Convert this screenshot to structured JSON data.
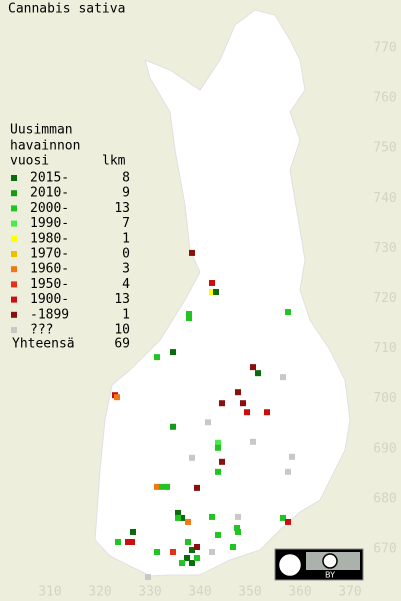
{
  "title": "Cannabis sativa",
  "legend": {
    "heading": [
      "Uusimman",
      "havainnon",
      "vuosi"
    ],
    "count_heading": "lkm",
    "rows": [
      {
        "label": "2015-",
        "count": 8,
        "color": "#0b6a0b"
      },
      {
        "label": "2010-",
        "count": 9,
        "color": "#169a16"
      },
      {
        "label": "2000-",
        "count": 13,
        "color": "#22c422"
      },
      {
        "label": "1990-",
        "count": 7,
        "color": "#48ec48"
      },
      {
        "label": "1980-",
        "count": 1,
        "color": "#ffff00"
      },
      {
        "label": "1970-",
        "count": 0,
        "color": "#f0c000"
      },
      {
        "label": "1960-",
        "count": 3,
        "color": "#f07818"
      },
      {
        "label": "1950-",
        "count": 4,
        "color": "#e83018"
      },
      {
        "label": "1900-",
        "count": 13,
        "color": "#c81010"
      },
      {
        "label": "-1899",
        "count": 1,
        "color": "#8a1010"
      },
      {
        "label": "???",
        "count": 10,
        "color": "#c8c8c8"
      }
    ],
    "total_label": "Yhteensä",
    "total": 69
  },
  "map": {
    "xticks": [
      310,
      320,
      330,
      340,
      350,
      360,
      370
    ],
    "yticks": [
      670,
      680,
      690,
      700,
      710,
      720,
      730,
      740,
      750,
      760,
      770
    ],
    "points": [
      {
        "x": 338.4,
        "y": 729.1,
        "period": 9
      },
      {
        "x": 342.4,
        "y": 723.1,
        "period": 8
      },
      {
        "x": 342.4,
        "y": 721.3,
        "period": 4
      },
      {
        "x": 343.2,
        "y": 721.3,
        "period": 0
      },
      {
        "x": 337.8,
        "y": 716.9,
        "period": 2
      },
      {
        "x": 337.8,
        "y": 716.1,
        "period": 2
      },
      {
        "x": 357.6,
        "y": 717.3,
        "period": 2
      },
      {
        "x": 331.4,
        "y": 708.3,
        "period": 2
      },
      {
        "x": 334.6,
        "y": 709.3,
        "period": 0
      },
      {
        "x": 350.6,
        "y": 706.3,
        "period": 9
      },
      {
        "x": 351.6,
        "y": 705.1,
        "period": 0
      },
      {
        "x": 356.6,
        "y": 704.3,
        "period": 10
      },
      {
        "x": 323,
        "y": 700.7,
        "period": 8
      },
      {
        "x": 323.4,
        "y": 700.3,
        "period": 6
      },
      {
        "x": 347.6,
        "y": 701.3,
        "period": 9
      },
      {
        "x": 344.4,
        "y": 699.1,
        "period": 9
      },
      {
        "x": 348.6,
        "y": 699.1,
        "period": 9
      },
      {
        "x": 349.4,
        "y": 697.3,
        "period": 8
      },
      {
        "x": 353.4,
        "y": 697.3,
        "period": 8
      },
      {
        "x": 334.6,
        "y": 694.4,
        "period": 1
      },
      {
        "x": 341.6,
        "y": 695.3,
        "period": 10
      },
      {
        "x": 343.6,
        "y": 691.2,
        "period": 3
      },
      {
        "x": 343.6,
        "y": 690.2,
        "period": 2
      },
      {
        "x": 350.6,
        "y": 691.4,
        "period": 10
      },
      {
        "x": 358.4,
        "y": 688.4,
        "period": 10
      },
      {
        "x": 357.6,
        "y": 685.4,
        "period": 10
      },
      {
        "x": 338.4,
        "y": 688.2,
        "period": 10
      },
      {
        "x": 344.4,
        "y": 687.4,
        "period": 9
      },
      {
        "x": 343.6,
        "y": 685.4,
        "period": 2
      },
      {
        "x": 331.4,
        "y": 682.4,
        "period": 6
      },
      {
        "x": 332.4,
        "y": 682.4,
        "period": 2
      },
      {
        "x": 333.4,
        "y": 682.4,
        "period": 2
      },
      {
        "x": 339.4,
        "y": 682.2,
        "period": 9
      },
      {
        "x": 335.6,
        "y": 677.2,
        "period": 0
      },
      {
        "x": 336.4,
        "y": 676.2,
        "period": 0
      },
      {
        "x": 335.6,
        "y": 676.2,
        "period": 2
      },
      {
        "x": 342.4,
        "y": 676.4,
        "period": 2
      },
      {
        "x": 347.6,
        "y": 676.4,
        "period": 10
      },
      {
        "x": 356.6,
        "y": 676.2,
        "period": 2
      },
      {
        "x": 357.6,
        "y": 675.4,
        "period": 8
      },
      {
        "x": 326.6,
        "y": 673.4,
        "period": 0
      },
      {
        "x": 337.6,
        "y": 675.4,
        "period": 6
      },
      {
        "x": 347.4,
        "y": 674.2,
        "period": 2
      },
      {
        "x": 347.6,
        "y": 673.4,
        "period": 2
      },
      {
        "x": 323.6,
        "y": 671.4,
        "period": 2
      },
      {
        "x": 325.6,
        "y": 671.4,
        "period": 8
      },
      {
        "x": 326.4,
        "y": 671.4,
        "period": 8
      },
      {
        "x": 337.6,
        "y": 671.4,
        "period": 2
      },
      {
        "x": 343.6,
        "y": 672.8,
        "period": 2
      },
      {
        "x": 331.4,
        "y": 669.4,
        "period": 2
      },
      {
        "x": 334.6,
        "y": 669.4,
        "period": 7
      },
      {
        "x": 338.4,
        "y": 669.8,
        "period": 0
      },
      {
        "x": 339.4,
        "y": 670.4,
        "period": 9
      },
      {
        "x": 337.4,
        "y": 668.2,
        "period": 0
      },
      {
        "x": 338.4,
        "y": 667.2,
        "period": 0
      },
      {
        "x": 339.4,
        "y": 668.2,
        "period": 2
      },
      {
        "x": 342.4,
        "y": 669.4,
        "period": 10
      },
      {
        "x": 346.6,
        "y": 670.4,
        "period": 2
      },
      {
        "x": 329.6,
        "y": 664.4,
        "period": 10
      },
      {
        "x": 336.4,
        "y": 667.2,
        "period": 2
      }
    ]
  },
  "license": "BY"
}
